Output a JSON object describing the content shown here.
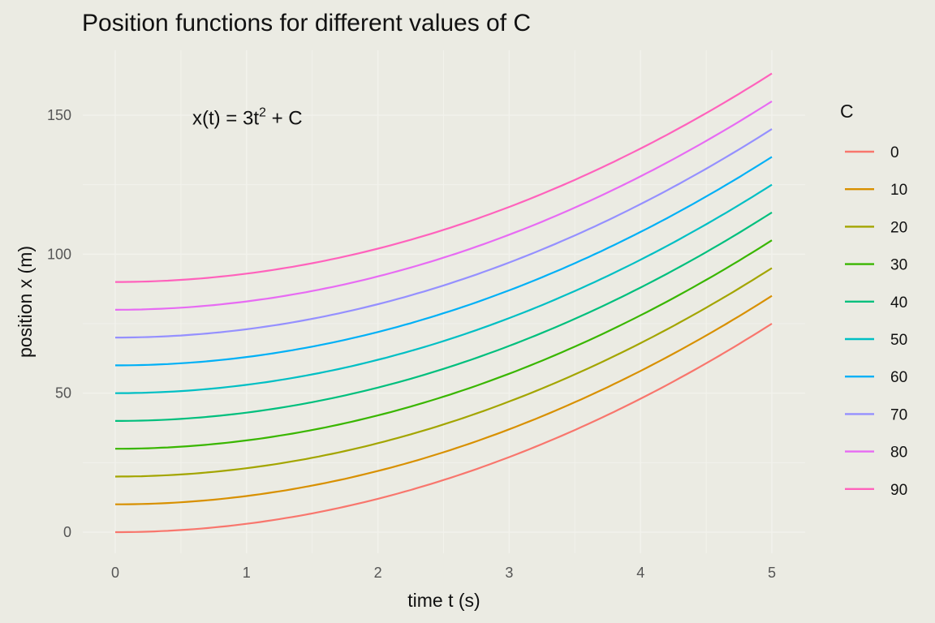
{
  "chart_data": {
    "type": "line",
    "title": "Position functions for different values of C",
    "xlabel": "time t (s)",
    "ylabel": "position x (m)",
    "xlim": [
      -0.25,
      5.25
    ],
    "ylim": [
      -8,
      173
    ],
    "xticks": [
      0,
      1,
      2,
      3,
      4,
      5
    ],
    "yticks": [
      0,
      50,
      100,
      150
    ],
    "grid": true,
    "legend_title": "C",
    "legend_position": "right",
    "annotation": {
      "text_main": "x(t) = 3t",
      "superscript": "2",
      "text_tail": " + C",
      "x": 1.0,
      "y": 149
    },
    "function": "x(t) = 3t^2 + C",
    "t_range": [
      0,
      5
    ],
    "series": [
      {
        "name": "0",
        "C": 0,
        "color": "#F8766D"
      },
      {
        "name": "10",
        "C": 10,
        "color": "#D89000"
      },
      {
        "name": "20",
        "C": 20,
        "color": "#A3A500"
      },
      {
        "name": "30",
        "C": 30,
        "color": "#39B600"
      },
      {
        "name": "40",
        "C": 40,
        "color": "#00BF7D"
      },
      {
        "name": "50",
        "C": 50,
        "color": "#00BFC4"
      },
      {
        "name": "60",
        "C": 60,
        "color": "#00B0F6"
      },
      {
        "name": "70",
        "C": 70,
        "color": "#9590FF"
      },
      {
        "name": "80",
        "C": 80,
        "color": "#E76BF3"
      },
      {
        "name": "90",
        "C": 90,
        "color": "#FF62BC"
      }
    ]
  }
}
